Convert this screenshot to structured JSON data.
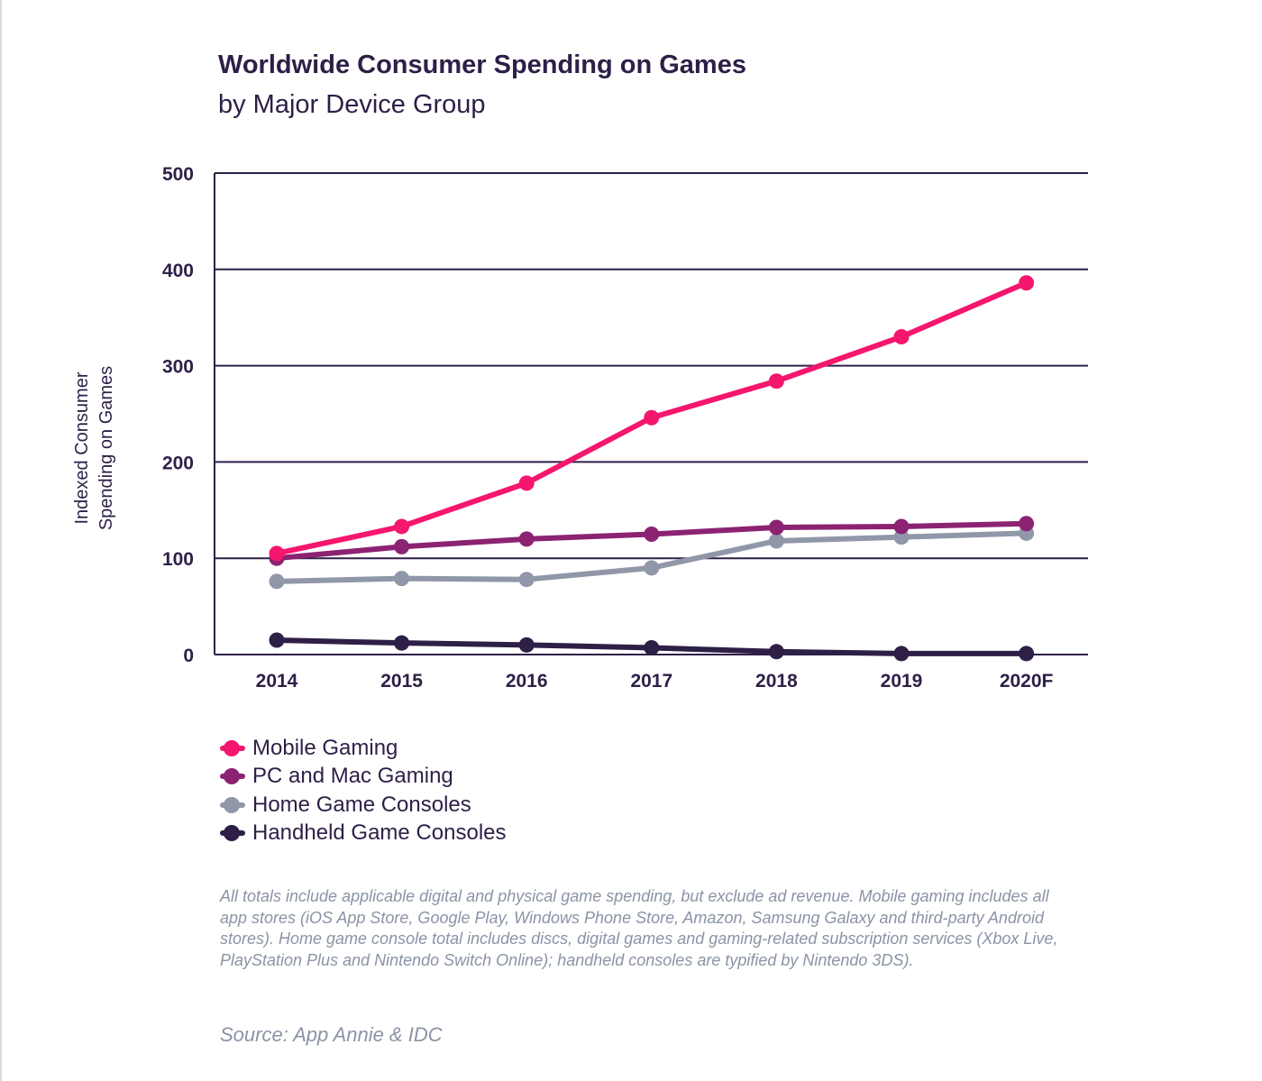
{
  "header": {
    "title": "Worldwide Consumer Spending on Games",
    "subtitle": "by Major Device Group"
  },
  "chart_data": {
    "type": "line",
    "title": "Worldwide Consumer Spending on Games",
    "subtitle": "by Major Device Group",
    "xlabel": "",
    "ylabel": "Indexed Consumer Spending on Games",
    "ylabel_lines": [
      "Indexed Consumer",
      "Spending on Games"
    ],
    "categories": [
      "2014",
      "2015",
      "2016",
      "2017",
      "2018",
      "2019",
      "2020F"
    ],
    "ylim": [
      0,
      500
    ],
    "yticks": [
      "0",
      "100",
      "200",
      "300",
      "400",
      "500"
    ],
    "grid": true,
    "legend_position": "bottom-left",
    "series": [
      {
        "name": "Mobile Gaming",
        "color": "#f5166e",
        "values": [
          105,
          133,
          178,
          246,
          284,
          330,
          386
        ]
      },
      {
        "name": "PC and Mac Gaming",
        "color": "#8b2372",
        "values": [
          100,
          112,
          120,
          125,
          132,
          133,
          136
        ]
      },
      {
        "name": "Home Game Consoles",
        "color": "#9097a8",
        "values": [
          76,
          79,
          78,
          90,
          118,
          122,
          126
        ]
      },
      {
        "name": "Handheld Game Consoles",
        "color": "#2e1f47",
        "values": [
          15,
          12,
          10,
          7,
          3,
          1,
          1
        ]
      }
    ]
  },
  "notes": {
    "footnote": "All totals include applicable digital and physical game spending, but exclude ad revenue. Mobile gaming includes  all app stores (iOS App Store, Google Play, Windows Phone Store, Amazon, Samsung Galaxy and third-party Android stores). Home game console total includes discs, digital games and gaming-related subscription services (Xbox Live, PlayStation Plus and Nintendo Switch Online); handheld consoles are typified by Nintendo 3DS).",
    "source": "Source: App Annie & IDC"
  }
}
